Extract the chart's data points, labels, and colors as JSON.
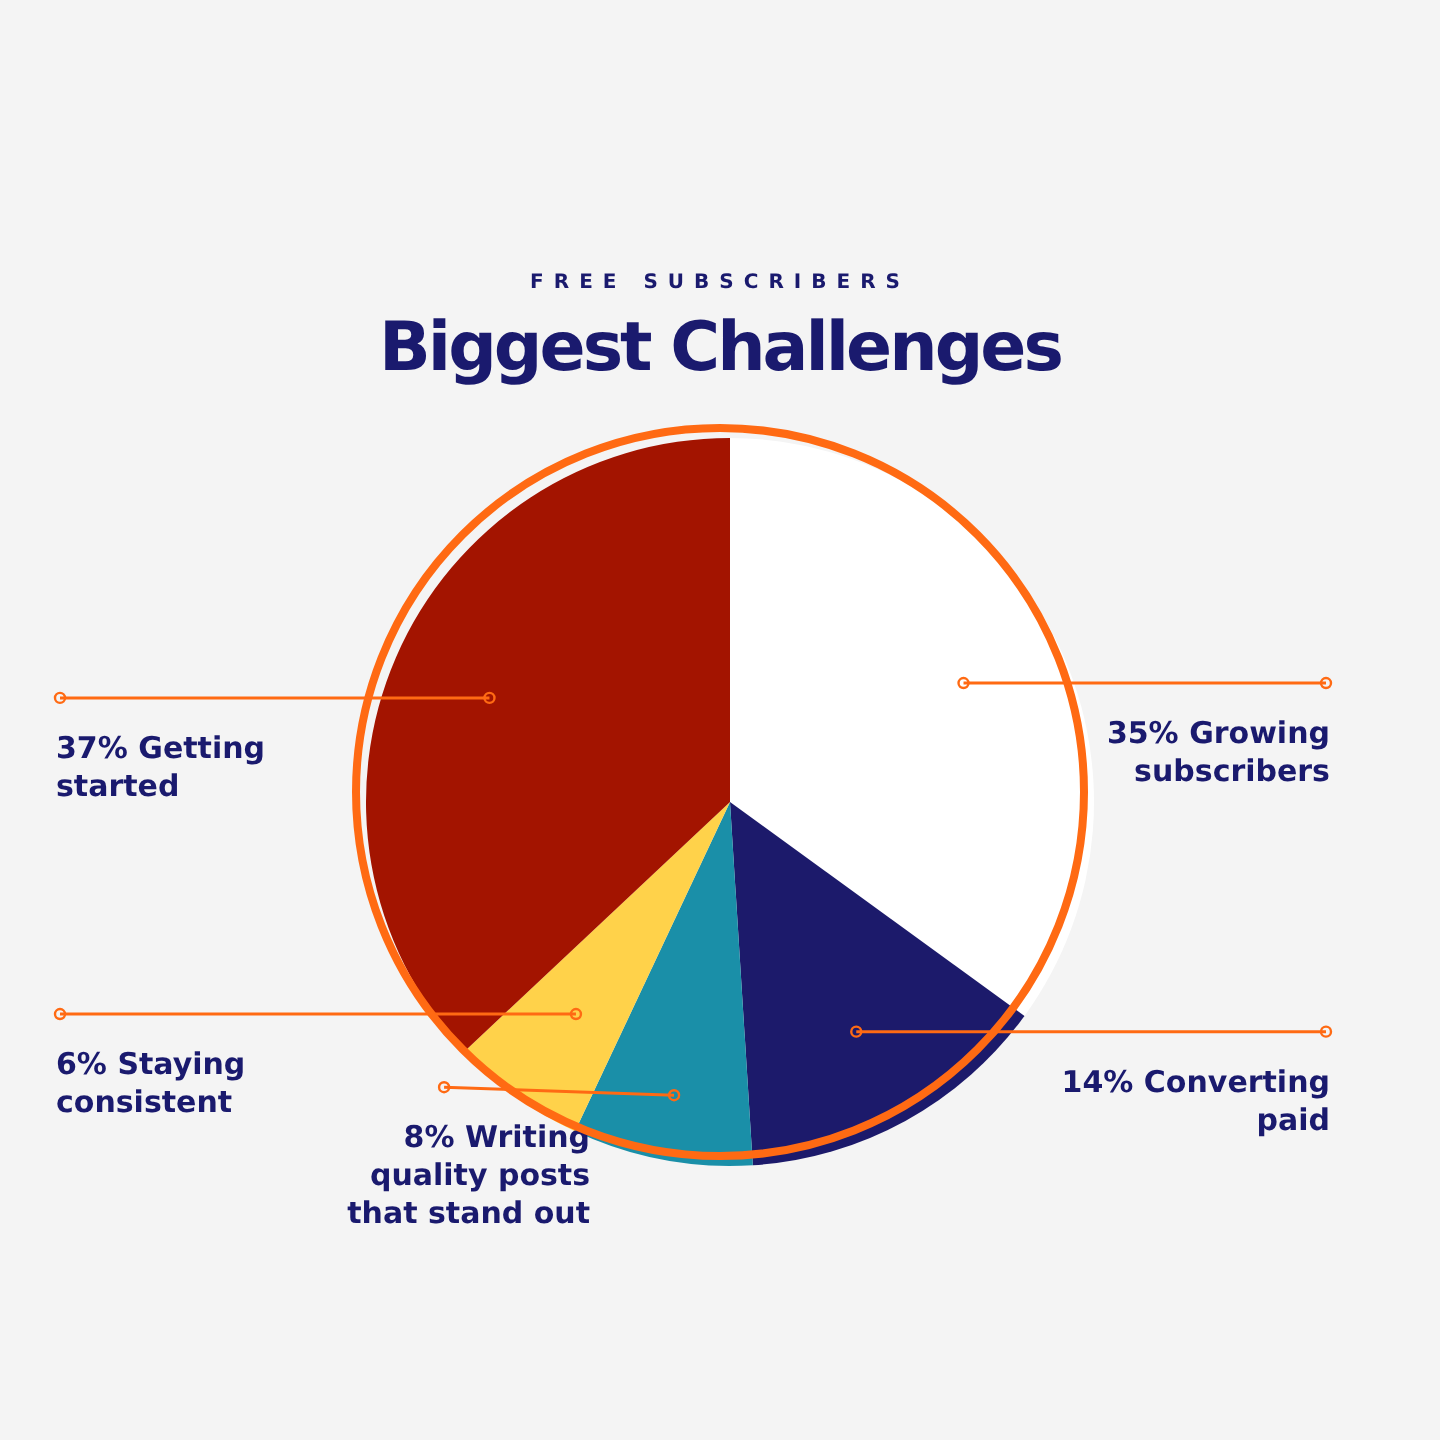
{
  "chart_data": {
    "type": "pie",
    "subtitle": "FREE SUBSCRIBERS",
    "title": "Biggest Challenges",
    "categories": [
      "Growing subscribers",
      "Converting paid",
      "Writing quality posts that stand out",
      "Staying consistent",
      "Getting started"
    ],
    "values": [
      35,
      14,
      8,
      6,
      37
    ],
    "value_labels": [
      "35%",
      "14%",
      "8%",
      "6%",
      "37%"
    ],
    "colors": [
      "#ffffff",
      "#1c1a6b",
      "#1a8fa8",
      "#ffd24a",
      "#a31400"
    ],
    "legend": false
  }
}
